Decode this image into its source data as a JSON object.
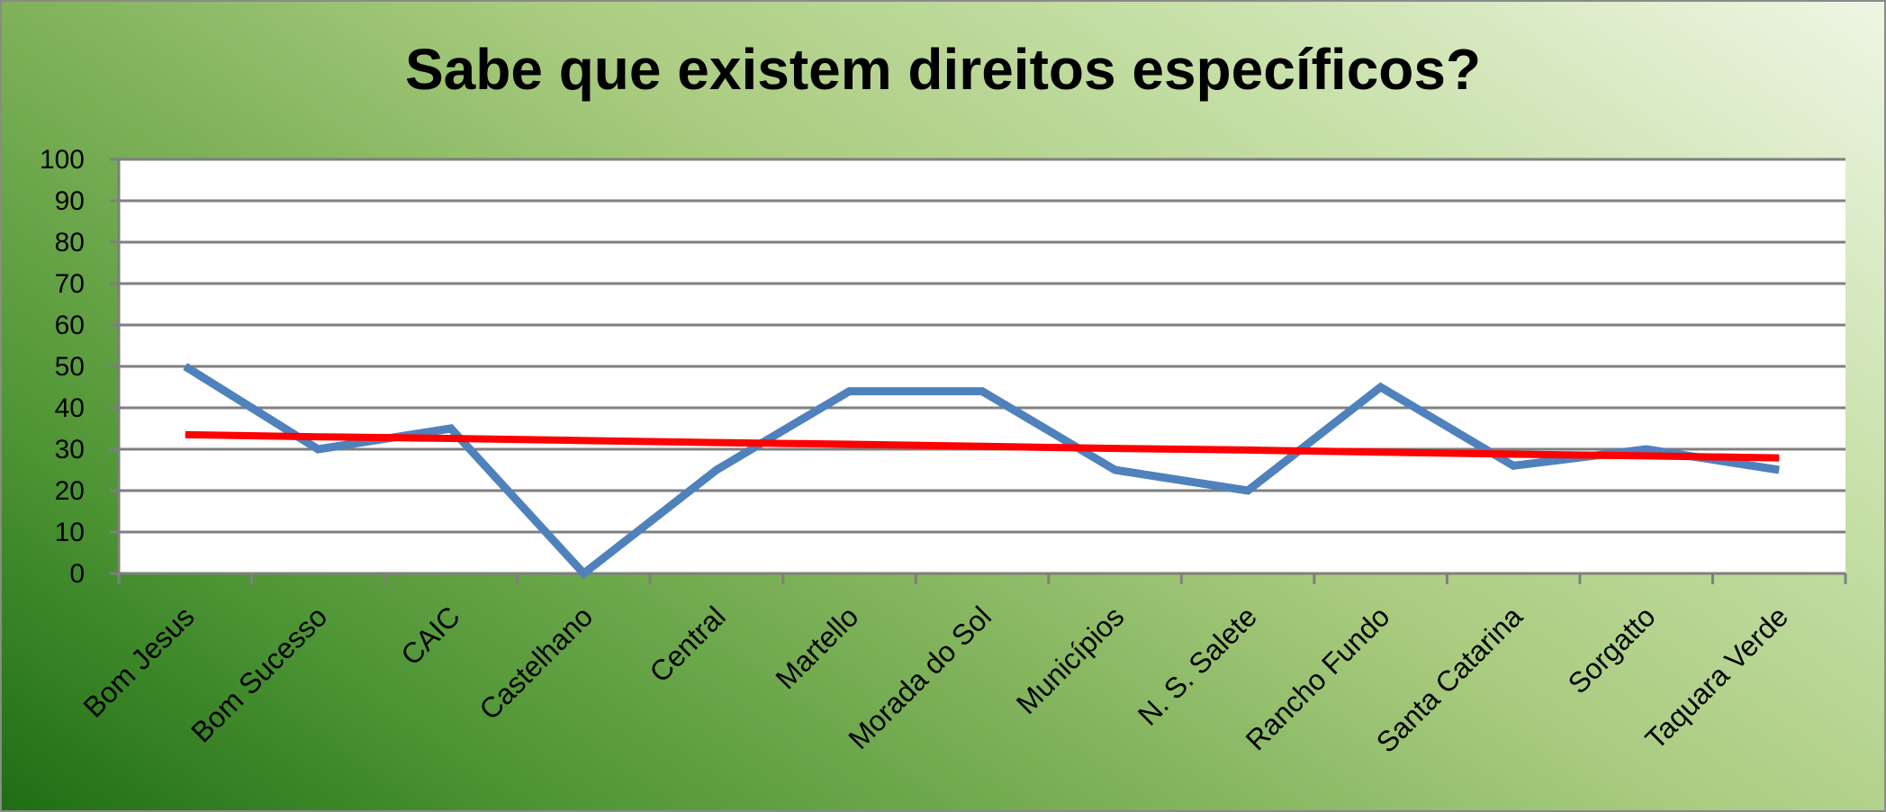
{
  "chart_data": {
    "type": "line",
    "title": "Sabe que existem direitos específicos?",
    "categories": [
      "Bom Jesus",
      "Bom Sucesso",
      "CAIC",
      "Castelhano",
      "Central",
      "Martello",
      "Morada do Sol",
      "Municípios",
      "N. S. Salete",
      "Rancho Fundo",
      "Santa Catarina",
      "Sorgatto",
      "Taquara Verde"
    ],
    "series": [
      {
        "values": [
          50,
          30,
          35,
          0,
          25,
          44,
          44,
          25,
          20,
          45,
          26,
          30,
          25
        ],
        "color": "#4f81bd"
      },
      {
        "kind": "linear trendline",
        "values": [
          33.5,
          33.0,
          32.6,
          32.1,
          31.6,
          31.2,
          30.7,
          30.2,
          29.8,
          29.3,
          28.8,
          28.4,
          27.9
        ],
        "color": "#ff0000"
      }
    ],
    "ylim": [
      0,
      100
    ],
    "yticks": [
      0,
      10,
      20,
      30,
      40,
      50,
      60,
      70,
      80,
      90,
      100
    ],
    "grid": true,
    "legend": "none",
    "xlabel": "",
    "ylabel": ""
  }
}
